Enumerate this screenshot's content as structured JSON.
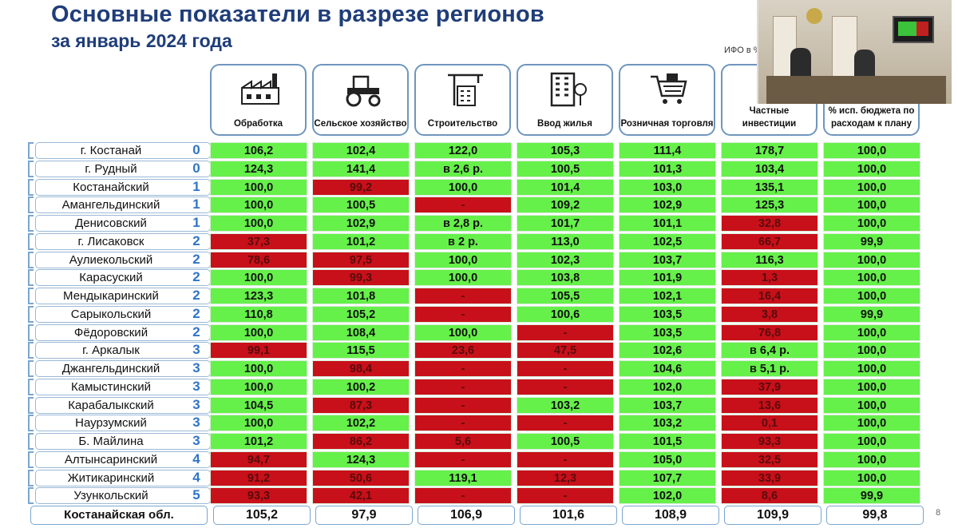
{
  "title": "Основные показатели в разрезе регионов",
  "subtitle": "за январь 2024 года",
  "note": "ИФО в %",
  "page_number": "8",
  "headers": [
    {
      "label": "Обработка",
      "icon": "factory-icon"
    },
    {
      "label": "Сельское хозяйство",
      "icon": "tractor-icon"
    },
    {
      "label": "Строительство",
      "icon": "construction-crane-icon"
    },
    {
      "label": "Ввод жилья",
      "icon": "apartment-building-icon"
    },
    {
      "label": "Розничная торговля",
      "icon": "shopping-cart-icon"
    },
    {
      "label": "Частные инвестиции",
      "icon": "investment-icon"
    },
    {
      "label": "% исп. бюджета по расходам к плану",
      "icon": "budget-icon"
    }
  ],
  "colors": {
    "green": "#66f04a",
    "red": "#c8101a",
    "title": "#1f3d79",
    "score": "#2e74c8"
  },
  "rows": [
    {
      "name": "г. Костанай",
      "score": "0",
      "values": [
        "106,2",
        "102,4",
        "122,0",
        "105,3",
        "111,4",
        "178,7",
        "100,0"
      ],
      "status": [
        "g",
        "g",
        "g",
        "g",
        "g",
        "g",
        "g"
      ]
    },
    {
      "name": "г. Рудный",
      "score": "0",
      "values": [
        "124,3",
        "141,4",
        "в 2,6 р.",
        "100,5",
        "101,3",
        "103,4",
        "100,0"
      ],
      "status": [
        "g",
        "g",
        "g",
        "g",
        "g",
        "g",
        "g"
      ]
    },
    {
      "name": "Костанайский",
      "score": "1",
      "values": [
        "100,0",
        "99,2",
        "100,0",
        "101,4",
        "103,0",
        "135,1",
        "100,0"
      ],
      "status": [
        "g",
        "r",
        "g",
        "g",
        "g",
        "g",
        "g"
      ]
    },
    {
      "name": "Амангельдинский",
      "score": "1",
      "values": [
        "100,0",
        "100,5",
        "-",
        "109,2",
        "102,9",
        "125,3",
        "100,0"
      ],
      "status": [
        "g",
        "g",
        "r",
        "g",
        "g",
        "g",
        "g"
      ]
    },
    {
      "name": "Денисовский",
      "score": "1",
      "values": [
        "100,0",
        "102,9",
        "в 2,8 р.",
        "101,7",
        "101,1",
        "32,8",
        "100,0"
      ],
      "status": [
        "g",
        "g",
        "g",
        "g",
        "g",
        "r",
        "g"
      ]
    },
    {
      "name": "г. Лисаковск",
      "score": "2",
      "values": [
        "37,3",
        "101,2",
        "в 2 р.",
        "113,0",
        "102,5",
        "66,7",
        "99,9"
      ],
      "status": [
        "r",
        "g",
        "g",
        "g",
        "g",
        "r",
        "g"
      ]
    },
    {
      "name": "Аулиекольский",
      "score": "2",
      "values": [
        "78,6",
        "97,5",
        "100,0",
        "102,3",
        "103,7",
        "116,3",
        "100,0"
      ],
      "status": [
        "r",
        "r",
        "g",
        "g",
        "g",
        "g",
        "g"
      ]
    },
    {
      "name": "Карасуский",
      "score": "2",
      "values": [
        "100,0",
        "99,3",
        "100,0",
        "103,8",
        "101,9",
        "1,3",
        "100,0"
      ],
      "status": [
        "g",
        "r",
        "g",
        "g",
        "g",
        "r",
        "g"
      ]
    },
    {
      "name": "Мендыкаринский",
      "score": "2",
      "values": [
        "123,3",
        "101,8",
        "-",
        "105,5",
        "102,1",
        "16,4",
        "100,0"
      ],
      "status": [
        "g",
        "g",
        "r",
        "g",
        "g",
        "r",
        "g"
      ]
    },
    {
      "name": "Сарыкольский",
      "score": "2",
      "values": [
        "110,8",
        "105,2",
        "-",
        "100,6",
        "103,5",
        "3,8",
        "99,9"
      ],
      "status": [
        "g",
        "g",
        "r",
        "g",
        "g",
        "r",
        "g"
      ]
    },
    {
      "name": "Фёдоровский",
      "score": "2",
      "values": [
        "100,0",
        "108,4",
        "100,0",
        "-",
        "103,5",
        "76,8",
        "100,0"
      ],
      "status": [
        "g",
        "g",
        "g",
        "r",
        "g",
        "r",
        "g"
      ]
    },
    {
      "name": "г. Аркалык",
      "score": "3",
      "values": [
        "99,1",
        "115,5",
        "23,6",
        "47,5",
        "102,6",
        "в 6,4 р.",
        "100,0"
      ],
      "status": [
        "r",
        "g",
        "r",
        "r",
        "g",
        "g",
        "g"
      ]
    },
    {
      "name": "Джангельдинский",
      "score": "3",
      "values": [
        "100,0",
        "98,4",
        "-",
        "-",
        "104,6",
        "в 5,1 р.",
        "100,0"
      ],
      "status": [
        "g",
        "r",
        "r",
        "r",
        "g",
        "g",
        "g"
      ]
    },
    {
      "name": "Камыстинский",
      "score": "3",
      "values": [
        "100,0",
        "100,2",
        "-",
        "-",
        "102,0",
        "37,9",
        "100,0"
      ],
      "status": [
        "g",
        "g",
        "r",
        "r",
        "g",
        "r",
        "g"
      ]
    },
    {
      "name": "Карабалыкский",
      "score": "3",
      "values": [
        "104,5",
        "87,3",
        "-",
        "103,2",
        "103,7",
        "13,6",
        "100,0"
      ],
      "status": [
        "g",
        "r",
        "r",
        "g",
        "g",
        "r",
        "g"
      ]
    },
    {
      "name": "Наурзумский",
      "score": "3",
      "values": [
        "100,0",
        "102,2",
        "-",
        "-",
        "103,2",
        "0,1",
        "100,0"
      ],
      "status": [
        "g",
        "g",
        "r",
        "r",
        "g",
        "r",
        "g"
      ]
    },
    {
      "name": "Б. Майлина",
      "score": "3",
      "values": [
        "101,2",
        "86,2",
        "5,6",
        "100,5",
        "101,5",
        "93,3",
        "100,0"
      ],
      "status": [
        "g",
        "r",
        "r",
        "g",
        "g",
        "r",
        "g"
      ]
    },
    {
      "name": "Алтынсаринский",
      "score": "4",
      "values": [
        "94,7",
        "124,3",
        "-",
        "-",
        "105,0",
        "32,5",
        "100,0"
      ],
      "status": [
        "r",
        "g",
        "r",
        "r",
        "g",
        "r",
        "g"
      ]
    },
    {
      "name": "Житикаринский",
      "score": "4",
      "values": [
        "91,2",
        "50,6",
        "119,1",
        "12,3",
        "107,7",
        "33,9",
        "100,0"
      ],
      "status": [
        "r",
        "r",
        "g",
        "r",
        "g",
        "r",
        "g"
      ]
    },
    {
      "name": "Узункольский",
      "score": "5",
      "values": [
        "93,3",
        "42,1",
        "-",
        "-",
        "102,0",
        "8,6",
        "99,9"
      ],
      "status": [
        "r",
        "r",
        "r",
        "r",
        "g",
        "r",
        "g"
      ]
    }
  ],
  "total": {
    "name": "Костанайская обл.",
    "values": [
      "105,2",
      "97,9",
      "106,9",
      "101,6",
      "108,9",
      "109,9",
      "99,8"
    ]
  }
}
